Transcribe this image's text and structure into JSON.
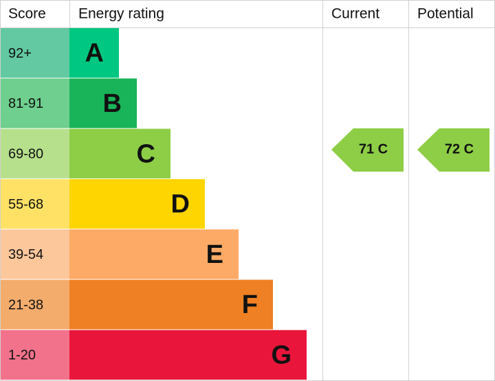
{
  "header": {
    "score": "Score",
    "energy_rating": "Energy rating",
    "current": "Current",
    "potential": "Potential"
  },
  "rows": [
    {
      "score": "92+",
      "letter": "A"
    },
    {
      "score": "81-91",
      "letter": "B"
    },
    {
      "score": "69-80",
      "letter": "C"
    },
    {
      "score": "55-68",
      "letter": "D"
    },
    {
      "score": "39-54",
      "letter": "E"
    },
    {
      "score": "21-38",
      "letter": "F"
    },
    {
      "score": "1-20",
      "letter": "G"
    }
  ],
  "current": "71 C",
  "potential": "72 C"
}
